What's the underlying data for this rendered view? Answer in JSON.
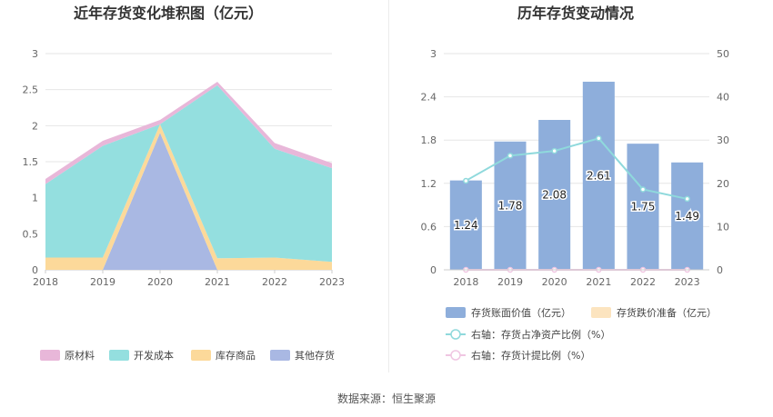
{
  "source_label": "数据来源：恒生聚源",
  "colors": {
    "raw_material": "#e8b7d9",
    "dev_cost": "#94dfdf",
    "goods": "#fcd99a",
    "other": "#a9b8e3",
    "bar": "#8eaedb",
    "reserve_legend": "#fce4bf",
    "ratio_line": "#8fd9dc",
    "provision_line": "#f0c6e2",
    "grid": "#e6e6e6",
    "axis_text": "#666666",
    "title": "#333333"
  },
  "chart_data": [
    {
      "type": "area",
      "stacked": true,
      "title": "近年存货变化堆积图（亿元）",
      "categories": [
        "2018",
        "2019",
        "2020",
        "2021",
        "2022",
        "2023"
      ],
      "ylim": [
        0,
        3
      ],
      "yticks": [
        "0",
        "0.5",
        "1",
        "1.5",
        "2",
        "2.5",
        "3"
      ],
      "grid": true,
      "legend_position": "bottom",
      "series": [
        {
          "name": "其他存货",
          "color_key": "other",
          "values": [
            0,
            0,
            1.9,
            0,
            0,
            0
          ]
        },
        {
          "name": "库存商品",
          "color_key": "goods",
          "values": [
            0.17,
            0.17,
            0.12,
            0.16,
            0.17,
            0.11
          ]
        },
        {
          "name": "开发成本",
          "color_key": "dev_cost",
          "values": [
            1.02,
            1.55,
            0.0,
            2.4,
            1.51,
            1.3
          ]
        },
        {
          "name": "原材料",
          "color_key": "raw_material",
          "values": [
            0.07,
            0.07,
            0.06,
            0.05,
            0.08,
            0.07
          ]
        }
      ],
      "legend": [
        {
          "name": "原材料",
          "color_key": "raw_material"
        },
        {
          "name": "开发成本",
          "color_key": "dev_cost"
        },
        {
          "name": "库存商品",
          "color_key": "goods"
        },
        {
          "name": "其他存货",
          "color_key": "other"
        }
      ]
    },
    {
      "type": "bar",
      "title": "历年存货变动情况",
      "categories": [
        "2018",
        "2019",
        "2020",
        "2021",
        "2022",
        "2023"
      ],
      "ylim": [
        0,
        3
      ],
      "yticks": [
        "0",
        "0.6",
        "1.2",
        "1.8",
        "2.4",
        "3"
      ],
      "y2lim": [
        0,
        50
      ],
      "y2ticks": [
        "0",
        "10",
        "20",
        "30",
        "40",
        "50"
      ],
      "grid": true,
      "legend_position": "bottom",
      "series": [
        {
          "name": "存货账面价值（亿元）",
          "kind": "bar",
          "axis": "left",
          "color_key": "bar",
          "values": [
            1.24,
            1.78,
            2.08,
            2.61,
            1.75,
            1.49
          ],
          "labels": [
            "1.24",
            "1.78",
            "2.08",
            "2.61",
            "1.75",
            "1.49"
          ]
        },
        {
          "name": "存货跌价准备（亿元）",
          "kind": "bar",
          "axis": "left",
          "color_key": "reserve_legend",
          "values": [
            0,
            0,
            0,
            0,
            0,
            0
          ]
        },
        {
          "name": "右轴：存货占净资产比例（%）",
          "kind": "line",
          "axis": "right",
          "color_key": "ratio_line",
          "values": [
            20.6,
            26.4,
            27.5,
            30.4,
            18.6,
            16.4
          ]
        },
        {
          "name": "右轴：存货计提比例（%）",
          "kind": "line",
          "axis": "right",
          "color_key": "provision_line",
          "values": [
            0,
            0,
            0,
            0,
            0,
            0
          ]
        }
      ]
    }
  ]
}
